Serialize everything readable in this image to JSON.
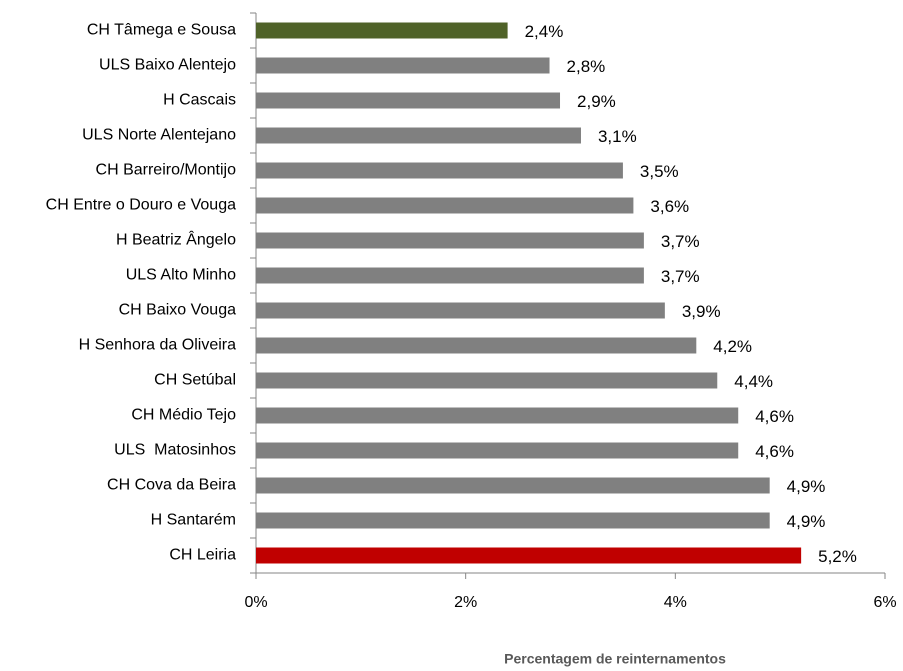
{
  "chart_data": {
    "type": "bar",
    "orientation": "horizontal",
    "categories": [
      "CH Tâmega e Sousa",
      "ULS Baixo Alentejo",
      "H Cascais",
      "ULS Norte Alentejano",
      "CH Barreiro/Montijo",
      "CH Entre o Douro e Vouga",
      "H Beatriz Ângelo",
      "ULS Alto Minho",
      "CH Baixo Vouga",
      "H Senhora da Oliveira",
      "CH Setúbal",
      "CH Médio Tejo",
      "ULS  Matosinhos",
      "CH Cova da Beira",
      "H Santarém",
      "CH Leiria"
    ],
    "values": [
      2.4,
      2.8,
      2.9,
      3.1,
      3.5,
      3.6,
      3.7,
      3.7,
      3.9,
      4.2,
      4.4,
      4.6,
      4.6,
      4.9,
      4.9,
      5.2
    ],
    "value_labels": [
      "2,4%",
      "2,8%",
      "2,9%",
      "3,1%",
      "3,5%",
      "3,6%",
      "3,7%",
      "3,7%",
      "3,9%",
      "4,2%",
      "4,4%",
      "4,6%",
      "4,6%",
      "4,9%",
      "4,9%",
      "5,2%"
    ],
    "colors": [
      "#4f6228",
      "#808080",
      "#808080",
      "#808080",
      "#808080",
      "#808080",
      "#808080",
      "#808080",
      "#808080",
      "#808080",
      "#808080",
      "#808080",
      "#808080",
      "#808080",
      "#808080",
      "#c00000"
    ],
    "xlabel": "Percentagem de reinternamentos",
    "xlim": [
      0,
      6
    ],
    "xticks": [
      {
        "value": 0,
        "label": "0%"
      },
      {
        "value": 2,
        "label": "2%"
      },
      {
        "value": 4,
        "label": "4%"
      },
      {
        "value": 6,
        "label": "6%"
      }
    ],
    "grid": false
  }
}
